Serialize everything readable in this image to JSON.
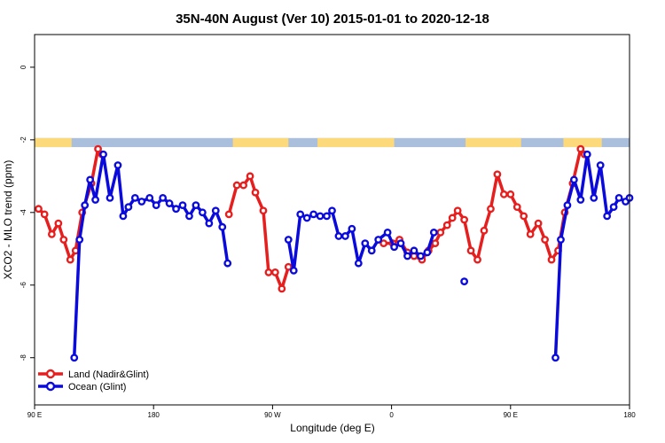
{
  "chart_data": {
    "type": "line",
    "title": "35N-40N August (Ver 10)   2015-01-01 to 2020-12-18",
    "xlabel": "Longitude (deg E)",
    "ylabel": "XCO2 - MLO trend (ppm)",
    "xlim": [
      90,
      540
    ],
    "ylim": [
      -9.3,
      0.9
    ],
    "x_ticks": [
      {
        "value": 90,
        "label": "90 E"
      },
      {
        "value": 180,
        "label": "180"
      },
      {
        "value": 270,
        "label": "90 W"
      },
      {
        "value": 360,
        "label": "0"
      },
      {
        "value": 450,
        "label": "90 E"
      },
      {
        "value": 540,
        "label": "180"
      }
    ],
    "y_ticks": [
      {
        "value": 0,
        "label": "0"
      },
      {
        "value": -2,
        "label": "-2"
      },
      {
        "value": -4,
        "label": "-4"
      },
      {
        "value": -6,
        "label": "-6"
      },
      {
        "value": -8,
        "label": "-8"
      }
    ],
    "colors": {
      "land": "#e61e1e",
      "ocean": "#0a0adc",
      "land_mask": "#fcd97a",
      "ocean_mask": "#a9bfdb"
    },
    "surface_band": {
      "y_range": [
        -2.2,
        -1.95
      ],
      "land_segments": [
        [
          90,
          118
        ],
        [
          240,
          282
        ],
        [
          304,
          362
        ],
        [
          416,
          458
        ],
        [
          490,
          519
        ]
      ]
    },
    "legend": {
      "position": "bottom-left"
    },
    "series": [
      {
        "name": "Land (Nadir&Glint)",
        "color": "#e61e1e",
        "segments": [
          [
            [
              93,
              -3.9
            ],
            [
              97.5,
              -4.05
            ],
            [
              103,
              -4.6
            ],
            [
              108,
              -4.3
            ],
            [
              112,
              -4.75
            ],
            [
              117,
              -5.3
            ],
            [
              121,
              -5.05
            ],
            [
              126,
              -4.0
            ],
            [
              133,
              -3.2
            ],
            [
              138,
              -2.25
            ],
            [
              141,
              -2.4
            ]
          ],
          [
            [
              237,
              -4.05
            ],
            [
              243,
              -3.25
            ],
            [
              248,
              -3.25
            ],
            [
              253,
              -3.0
            ],
            [
              257,
              -3.45
            ],
            [
              263,
              -3.95
            ],
            [
              267,
              -5.65
            ],
            [
              272,
              -5.65
            ],
            [
              277,
              -6.1
            ],
            [
              282,
              -5.5
            ]
          ],
          [
            [
              354,
              -4.85
            ],
            [
              361,
              -4.85
            ],
            [
              366,
              -4.75
            ],
            [
              372,
              -5.1
            ],
            [
              377,
              -5.2
            ],
            [
              383,
              -5.3
            ],
            [
              388,
              -5.05
            ],
            [
              393,
              -4.85
            ],
            [
              397,
              -4.55
            ],
            [
              402,
              -4.35
            ],
            [
              406,
              -4.15
            ],
            [
              410,
              -3.95
            ],
            [
              415,
              -4.2
            ],
            [
              420,
              -5.05
            ],
            [
              425,
              -5.3
            ],
            [
              430,
              -4.5
            ],
            [
              435,
              -3.9
            ],
            [
              440,
              -2.95
            ],
            [
              445,
              -3.5
            ],
            [
              450,
              -3.5
            ],
            [
              455,
              -3.85
            ],
            [
              460,
              -4.1
            ],
            [
              465,
              -4.6
            ],
            [
              471,
              -4.3
            ],
            [
              476,
              -4.75
            ],
            [
              481,
              -5.3
            ],
            [
              486,
              -5.05
            ],
            [
              491,
              -4.0
            ],
            [
              497,
              -3.2
            ],
            [
              503,
              -2.25
            ],
            [
              506,
              -2.4
            ]
          ]
        ]
      },
      {
        "name": "Ocean (Glint)",
        "color": "#0a0adc",
        "segments": [
          [
            [
              120,
              -8.0
            ],
            [
              124,
              -4.75
            ],
            [
              128,
              -3.8
            ],
            [
              132,
              -3.1
            ],
            [
              136,
              -3.65
            ],
            [
              142,
              -2.4
            ],
            [
              147,
              -3.6
            ],
            [
              153,
              -2.7
            ],
            [
              157,
              -4.1
            ],
            [
              161,
              -3.85
            ],
            [
              166,
              -3.6
            ],
            [
              171,
              -3.7
            ],
            [
              177,
              -3.6
            ],
            [
              182,
              -3.8
            ],
            [
              187,
              -3.6
            ],
            [
              192,
              -3.75
            ],
            [
              197,
              -3.9
            ],
            [
              202,
              -3.8
            ],
            [
              207,
              -4.1
            ],
            [
              212,
              -3.8
            ],
            [
              217,
              -4.0
            ],
            [
              222,
              -4.3
            ],
            [
              227,
              -3.95
            ],
            [
              232,
              -4.4
            ],
            [
              236,
              -5.4
            ]
          ],
          [
            [
              282,
              -4.75
            ],
            [
              286,
              -5.6
            ],
            [
              291,
              -4.05
            ],
            [
              296,
              -4.15
            ],
            [
              301,
              -4.05
            ],
            [
              306,
              -4.1
            ],
            [
              311,
              -4.1
            ],
            [
              315,
              -3.95
            ],
            [
              320,
              -4.65
            ],
            [
              325,
              -4.65
            ],
            [
              330,
              -4.45
            ],
            [
              335,
              -5.4
            ],
            [
              340,
              -4.85
            ],
            [
              345,
              -5.05
            ],
            [
              350,
              -4.75
            ],
            [
              357,
              -4.55
            ],
            [
              362,
              -4.95
            ],
            [
              367,
              -4.85
            ],
            [
              372,
              -5.2
            ],
            [
              377,
              -5.05
            ],
            [
              382,
              -5.2
            ],
            [
              387,
              -5.1
            ],
            [
              392,
              -4.55
            ]
          ],
          [
            [
              415,
              -5.9
            ]
          ],
          [
            [
              484,
              -8.0
            ],
            [
              488,
              -4.75
            ],
            [
              493,
              -3.8
            ],
            [
              498,
              -3.1
            ],
            [
              503,
              -3.65
            ],
            [
              508,
              -2.4
            ],
            [
              513,
              -3.6
            ],
            [
              518,
              -2.7
            ],
            [
              523,
              -4.1
            ],
            [
              528,
              -3.85
            ],
            [
              532,
              -3.6
            ],
            [
              537,
              -3.7
            ],
            [
              540,
              -3.6
            ]
          ]
        ]
      }
    ]
  }
}
